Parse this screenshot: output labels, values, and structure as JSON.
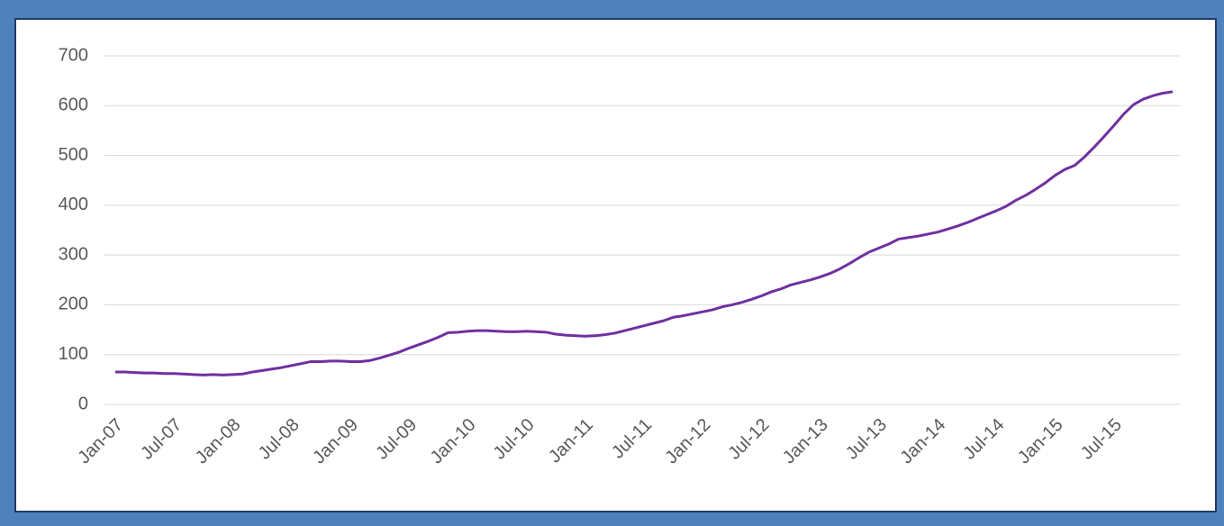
{
  "chart_data": {
    "type": "line",
    "categories": [
      "Jan-07",
      null,
      null,
      null,
      null,
      null,
      "Jul-07",
      null,
      null,
      null,
      null,
      null,
      "Jan-08",
      null,
      null,
      null,
      null,
      null,
      "Jul-08",
      null,
      null,
      null,
      null,
      null,
      "Jan-09",
      null,
      null,
      null,
      null,
      null,
      "Jul-09",
      null,
      null,
      null,
      null,
      null,
      "Jan-10",
      null,
      null,
      null,
      null,
      null,
      "Jul-10",
      null,
      null,
      null,
      null,
      null,
      "Jan-11",
      null,
      null,
      null,
      null,
      null,
      "Jul-11",
      null,
      null,
      null,
      null,
      null,
      "Jan-12",
      null,
      null,
      null,
      null,
      null,
      "Jul-12",
      null,
      null,
      null,
      null,
      null,
      "Jan-13",
      null,
      null,
      null,
      null,
      null,
      "Jul-13",
      null,
      null,
      null,
      null,
      null,
      "Jan-14",
      null,
      null,
      null,
      null,
      null,
      "Jul-14",
      null,
      null,
      null,
      null,
      null,
      "Jan-15",
      null,
      null,
      null,
      null,
      null,
      "Jul-15",
      null,
      null,
      null,
      null,
      null,
      null
    ],
    "series": [
      {
        "color": "#7030a0",
        "values": [
          65,
          65,
          64,
          63,
          63,
          62,
          62,
          61,
          60,
          59,
          60,
          59,
          60,
          61,
          65,
          68,
          71,
          74,
          78,
          82,
          86,
          86,
          87,
          87,
          86,
          86,
          88,
          93,
          99,
          105,
          113,
          120,
          127,
          135,
          144,
          145,
          147,
          148,
          148,
          147,
          146,
          146,
          147,
          146,
          145,
          141,
          139,
          138,
          137,
          138,
          140,
          143,
          148,
          153,
          158,
          163,
          168,
          175,
          178,
          182,
          186,
          190,
          196,
          200,
          205,
          211,
          218,
          226,
          232,
          240,
          245,
          250,
          256,
          263,
          272,
          283,
          295,
          306,
          314,
          322,
          332,
          335,
          338,
          342,
          346,
          352,
          358,
          365,
          373,
          381,
          389,
          398,
          410,
          420,
          432,
          445,
          460,
          472,
          480,
          497,
          517,
          538,
          560,
          583,
          602,
          613,
          620,
          625,
          628
        ]
      }
    ],
    "ylim": [
      0,
      700
    ],
    "yticks": [
      0,
      100,
      200,
      300,
      400,
      500,
      600,
      700
    ],
    "grid": true
  }
}
